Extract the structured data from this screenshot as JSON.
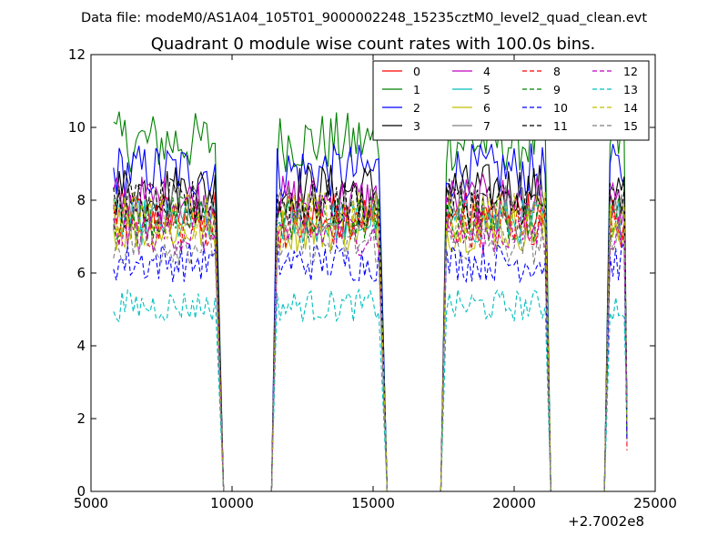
{
  "file_label": "Data file: modeM0/AS1A04_105T01_9000002248_15235cztM0_level2_quad_clean.evt",
  "chart_data": {
    "type": "line",
    "title": "Quadrant 0 module wise count rates with 100.0s bins.",
    "xlabel": "",
    "ylabel": "",
    "xlim": [
      5000,
      25000
    ],
    "ylim": [
      0,
      12
    ],
    "x_ticks": [
      "5000",
      "10000",
      "15000",
      "20000",
      "25000"
    ],
    "y_ticks": [
      "0",
      "2",
      "4",
      "6",
      "8",
      "10",
      "12"
    ],
    "x_offset_label": "+2.7002e8",
    "bin_s": 100,
    "grid": false,
    "legend": {
      "placement": "top-right",
      "columns": 4
    },
    "segments": [
      [
        5800,
        9400
      ],
      [
        11600,
        15200
      ],
      [
        17600,
        21100
      ],
      [
        23400,
        23900
      ]
    ],
    "gap_starts": [
      9700,
      15500,
      21300
    ],
    "gap_ends": [
      11400,
      17400,
      23200
    ],
    "end_x": 24000,
    "series": [
      {
        "name": "0",
        "color": "#ff0000",
        "dash": "solid",
        "mean": 7.6
      },
      {
        "name": "1",
        "color": "#008000",
        "dash": "solid",
        "mean": 9.6
      },
      {
        "name": "2",
        "color": "#0000ff",
        "dash": "solid",
        "mean": 8.8
      },
      {
        "name": "3",
        "color": "#000000",
        "dash": "solid",
        "mean": 8.3
      },
      {
        "name": "4",
        "color": "#bf00bf",
        "dash": "solid",
        "mean": 8.0
      },
      {
        "name": "5",
        "color": "#00bfbf",
        "dash": "solid",
        "mean": 7.4
      },
      {
        "name": "6",
        "color": "#bfbf00",
        "dash": "solid",
        "mean": 7.2
      },
      {
        "name": "7",
        "color": "#808080",
        "dash": "solid",
        "mean": 7.8
      },
      {
        "name": "8",
        "color": "#ff0000",
        "dash": "dashed",
        "mean": 7.3
      },
      {
        "name": "9",
        "color": "#008000",
        "dash": "dashed",
        "mean": 7.5
      },
      {
        "name": "10",
        "color": "#0000ff",
        "dash": "dashed",
        "mean": 6.3
      },
      {
        "name": "11",
        "color": "#000000",
        "dash": "dashed",
        "mean": 7.9
      },
      {
        "name": "12",
        "color": "#bf00bf",
        "dash": "dashed",
        "mean": 7.1
      },
      {
        "name": "13",
        "color": "#00bfbf",
        "dash": "dashed",
        "mean": 5.1
      },
      {
        "name": "14",
        "color": "#bfbf00",
        "dash": "dashed",
        "mean": 7.6
      },
      {
        "name": "15",
        "color": "#808080",
        "dash": "dashed",
        "mean": 6.8
      }
    ]
  }
}
